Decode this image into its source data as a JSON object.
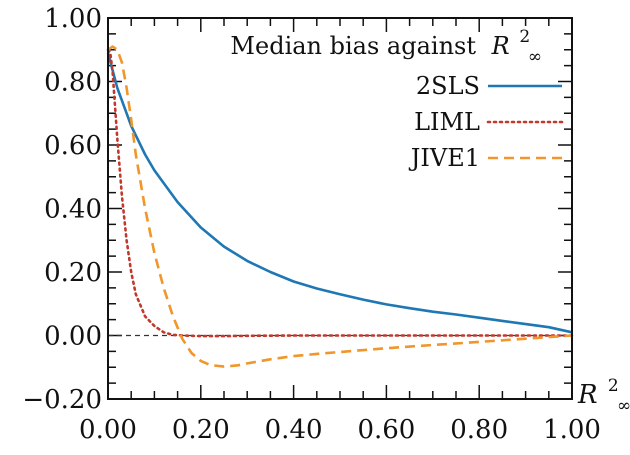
{
  "chart_data": {
    "type": "line",
    "title": "Median bias against",
    "title_symbol": "R",
    "title_sup": "2",
    "title_sub": "∞",
    "xlabel": "R",
    "xlabel_sup": "2",
    "xlabel_sub": "∞",
    "ylabel": "",
    "xlim": [
      0,
      1
    ],
    "ylim": [
      -0.2,
      1.0
    ],
    "x_ticks": [
      "0.00",
      "0.20",
      "0.40",
      "0.60",
      "0.80",
      "1.00"
    ],
    "y_ticks": [
      "1.00",
      "0.80",
      "0.60",
      "0.40",
      "0.20",
      "0.00",
      "−0.20"
    ],
    "x_tick_values": [
      0,
      0.2,
      0.4,
      0.6,
      0.8,
      1.0
    ],
    "y_tick_values": [
      1.0,
      0.8,
      0.6,
      0.4,
      0.2,
      0.0,
      -0.2
    ],
    "grid": false,
    "legend_position": "top-right",
    "reference_line": {
      "y": 0,
      "color": "#333333",
      "style": "dashed"
    },
    "series": [
      {
        "name": "2SLS",
        "color": "#1f77b4",
        "style": "solid",
        "x": [
          0.0,
          0.02,
          0.05,
          0.08,
          0.1,
          0.15,
          0.2,
          0.25,
          0.3,
          0.35,
          0.4,
          0.45,
          0.5,
          0.55,
          0.6,
          0.65,
          0.7,
          0.75,
          0.8,
          0.85,
          0.9,
          0.95,
          1.0
        ],
        "y": [
          0.89,
          0.78,
          0.66,
          0.57,
          0.52,
          0.42,
          0.34,
          0.28,
          0.235,
          0.2,
          0.17,
          0.148,
          0.13,
          0.113,
          0.098,
          0.086,
          0.075,
          0.066,
          0.056,
          0.046,
          0.036,
          0.026,
          0.01
        ]
      },
      {
        "name": "LIML",
        "color": "#c0392b",
        "style": "dotted",
        "x": [
          0.0,
          0.005,
          0.01,
          0.02,
          0.03,
          0.04,
          0.05,
          0.06,
          0.08,
          0.1,
          0.12,
          0.14,
          0.16,
          0.2,
          0.25,
          0.3,
          0.4,
          0.5,
          0.6,
          0.7,
          0.8,
          0.9,
          1.0
        ],
        "y": [
          0.9,
          0.89,
          0.83,
          0.62,
          0.44,
          0.3,
          0.2,
          0.13,
          0.06,
          0.03,
          0.01,
          0.002,
          0.0,
          -0.002,
          -0.002,
          -0.001,
          0.0,
          0.0,
          0.0,
          0.0,
          0.0,
          0.0,
          0.0
        ]
      },
      {
        "name": "JIVE1",
        "color": "#f0962a",
        "style": "dashed",
        "x": [
          0.0,
          0.01,
          0.02,
          0.03,
          0.04,
          0.05,
          0.06,
          0.08,
          0.1,
          0.12,
          0.14,
          0.16,
          0.18,
          0.2,
          0.22,
          0.25,
          0.28,
          0.3,
          0.35,
          0.4,
          0.45,
          0.5,
          0.6,
          0.7,
          0.8,
          0.9,
          1.0
        ],
        "y": [
          0.9,
          0.91,
          0.9,
          0.86,
          0.78,
          0.68,
          0.57,
          0.4,
          0.26,
          0.15,
          0.06,
          -0.01,
          -0.055,
          -0.08,
          -0.093,
          -0.098,
          -0.094,
          -0.088,
          -0.075,
          -0.065,
          -0.058,
          -0.052,
          -0.04,
          -0.03,
          -0.02,
          -0.01,
          0.0
        ]
      }
    ]
  }
}
